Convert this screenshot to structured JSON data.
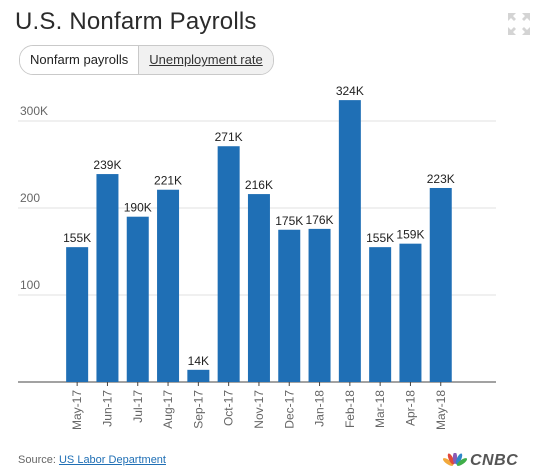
{
  "title": "U.S. Nonfarm Payrolls",
  "tabs": [
    {
      "label": "Nonfarm payrolls",
      "active": true
    },
    {
      "label": "Unemployment rate",
      "active": false
    }
  ],
  "icons": {
    "expand": "expand-icon",
    "logo": "nbc-peacock-icon"
  },
  "colors": {
    "bar": "#1f6fb5",
    "grid": "#e2e2e2",
    "link": "#1f6fb5"
  },
  "footer": {
    "source_prefix": "Source:",
    "source_link": "US Labor Department",
    "brand": "CNBC"
  },
  "chart_data": {
    "type": "bar",
    "categories": [
      "May-17",
      "Jun-17",
      "Jul-17",
      "Aug-17",
      "Sep-17",
      "Oct-17",
      "Nov-17",
      "Dec-17",
      "Jan-18",
      "Feb-18",
      "Mar-18",
      "Apr-18",
      "May-18"
    ],
    "values": [
      155,
      239,
      190,
      221,
      14,
      271,
      216,
      175,
      176,
      324,
      155,
      159,
      223
    ],
    "data_labels": [
      "155K",
      "239K",
      "190K",
      "221K",
      "14K",
      "271K",
      "216K",
      "175K",
      "176K",
      "324K",
      "155K",
      "159K",
      "223K"
    ],
    "yticks": [
      100,
      200,
      300
    ],
    "ytick_labels": [
      "100",
      "200",
      "300K"
    ],
    "ylim": [
      0,
      300
    ],
    "grid": true,
    "xlabel": "",
    "ylabel": ""
  }
}
